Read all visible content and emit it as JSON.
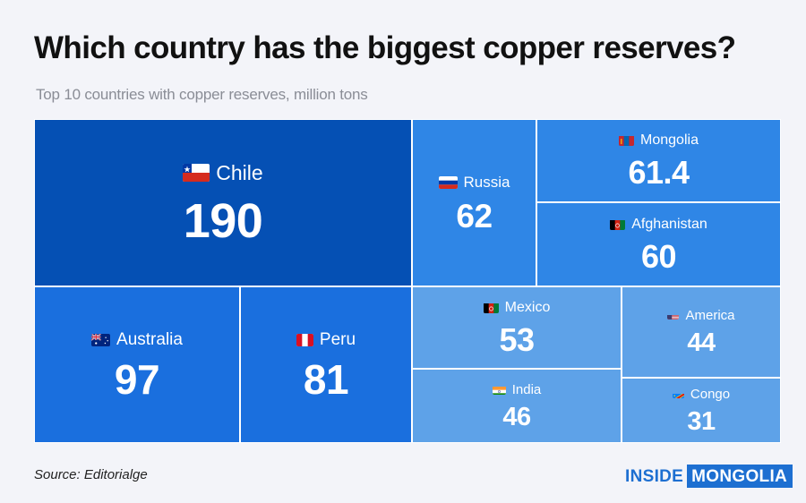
{
  "header": {
    "title": "Which country has the biggest copper reserves?",
    "subtitle": "Top 10 countries with copper reserves, million tons"
  },
  "footer": {
    "source": "Source: Editorialge",
    "brand_part1": "INSIDE",
    "brand_part2": "MONGOLIA",
    "brand_color": "#1d6fd1"
  },
  "chart_data": {
    "type": "treemap",
    "title": "Which country has the biggest copper reserves?",
    "subtitle": "Top 10 countries with copper reserves, million tons",
    "unit": "million tons",
    "series": [
      {
        "name": "Chile",
        "value": 190,
        "flag": "chile-flag-icon",
        "color": "#0550b4"
      },
      {
        "name": "Russia",
        "value": 62,
        "flag": "russia-flag-icon",
        "color": "#2f86e6"
      },
      {
        "name": "Mongolia",
        "value": 61.4,
        "flag": "mongolia-flag-icon",
        "color": "#2f86e6"
      },
      {
        "name": "Afghanistan",
        "value": 60,
        "flag": "afghanistan-flag-icon",
        "color": "#2f86e6"
      },
      {
        "name": "Australia",
        "value": 97,
        "flag": "australia-flag-icon",
        "color": "#1a6fde"
      },
      {
        "name": "Peru",
        "value": 81,
        "flag": "peru-flag-icon",
        "color": "#1a6fde"
      },
      {
        "name": "Mexico",
        "value": 53,
        "flag": "afghanistan-flag-icon",
        "color": "#5ea2e8"
      },
      {
        "name": "India",
        "value": 46,
        "flag": "india-flag-icon",
        "color": "#5ea2e8"
      },
      {
        "name": "America",
        "value": 44,
        "flag": "usa-flag-icon",
        "color": "#5ea2e8"
      },
      {
        "name": "Congo",
        "value": 31,
        "flag": "congo-flag-icon",
        "color": "#5ea2e8"
      }
    ]
  }
}
